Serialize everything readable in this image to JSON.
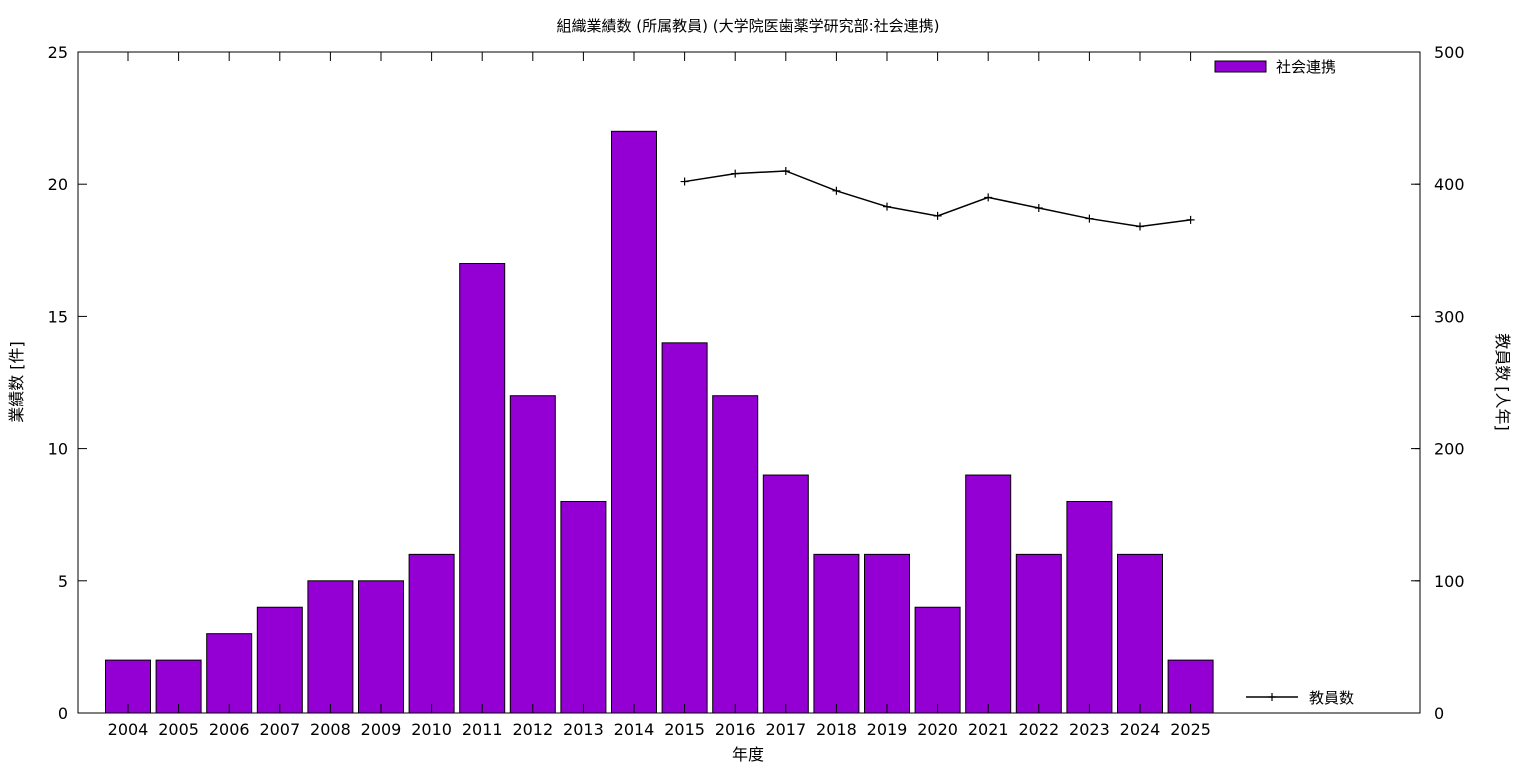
{
  "chart_data": {
    "type": "bar",
    "title": "組織業績数 (所属教員) (大学院医歯薬学研究部:社会連携)",
    "xlabel": "年度",
    "ylabel": "業績数 [件]",
    "y2label": "教員数 [人年]",
    "categories": [
      "2004",
      "2005",
      "2006",
      "2007",
      "2008",
      "2009",
      "2010",
      "2011",
      "2012",
      "2013",
      "2014",
      "2015",
      "2016",
      "2017",
      "2018",
      "2019",
      "2020",
      "2021",
      "2022",
      "2023",
      "2024",
      "2025"
    ],
    "ylim": [
      0,
      25
    ],
    "yticks": [
      0,
      5,
      10,
      15,
      20,
      25
    ],
    "y2lim": [
      0,
      500
    ],
    "y2ticks": [
      0,
      100,
      200,
      300,
      400,
      500
    ],
    "legend_position": "top-right",
    "series": [
      {
        "name": "社会連携",
        "kind": "bar",
        "axis": "left",
        "color": "#9400d3",
        "values": [
          2,
          2,
          3,
          4,
          5,
          5,
          6,
          17,
          12,
          8,
          22,
          14,
          12,
          9,
          6,
          6,
          4,
          9,
          6,
          8,
          6,
          2
        ]
      },
      {
        "name": "教員数",
        "kind": "line",
        "axis": "right",
        "color": "#000000",
        "x": [
          "2015",
          "2016",
          "2017",
          "2018",
          "2019",
          "2020",
          "2021",
          "2022",
          "2023",
          "2024",
          "2025"
        ],
        "values": [
          402,
          408,
          410,
          395,
          383,
          376,
          390,
          382,
          374,
          368,
          373
        ]
      }
    ]
  }
}
